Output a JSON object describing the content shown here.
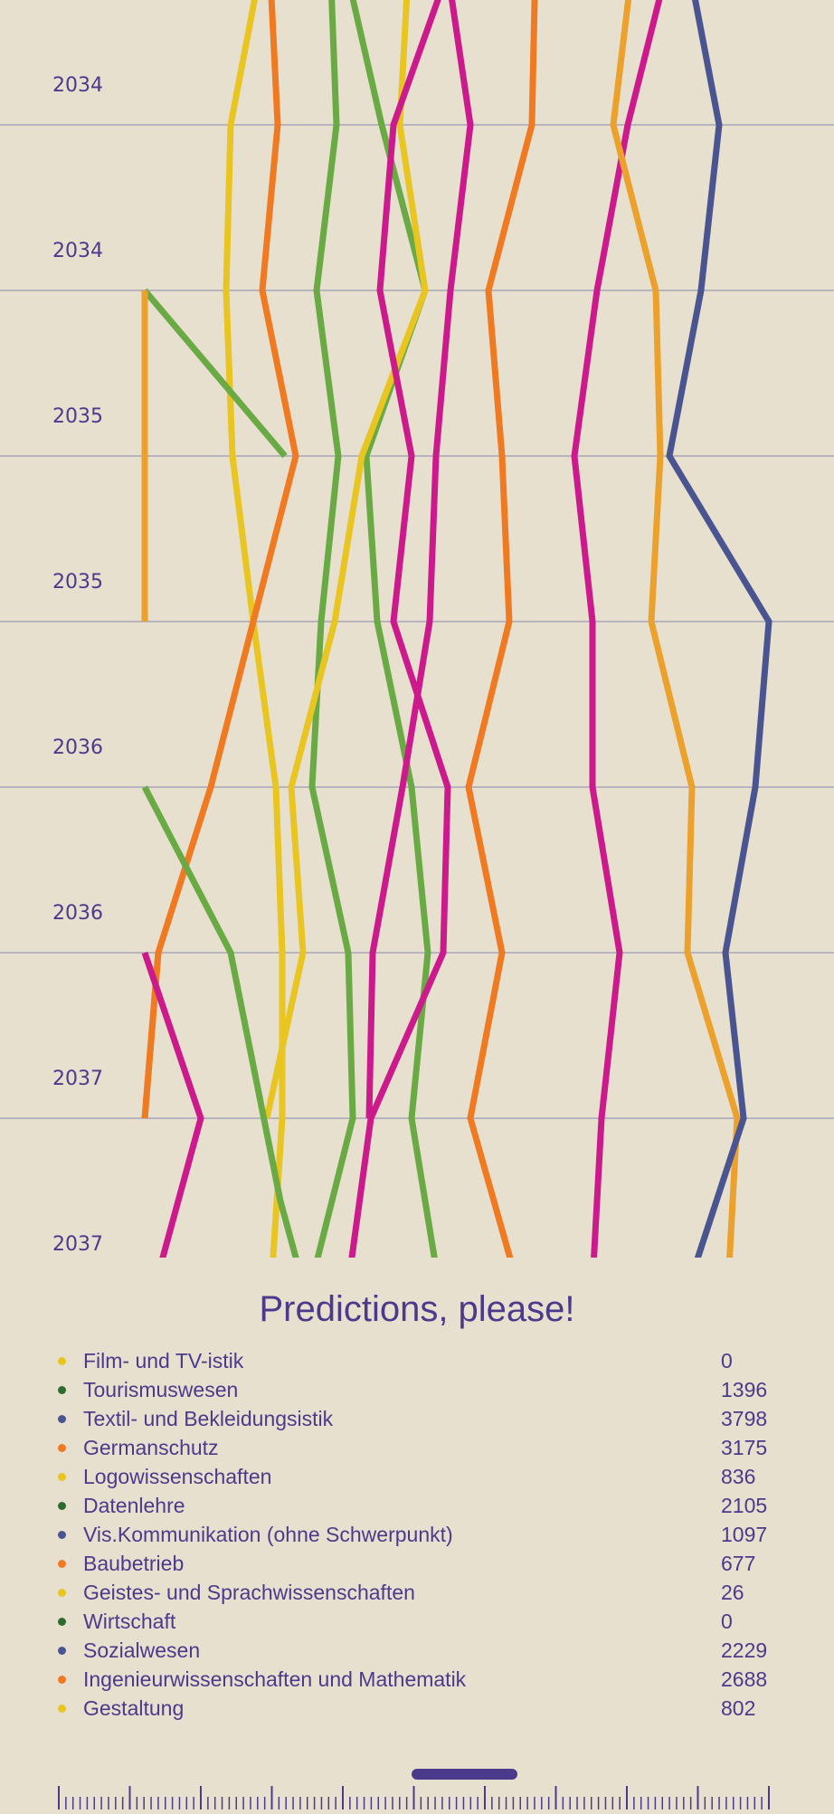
{
  "chart_data": {
    "type": "line",
    "orientation": "vertical-time-axis",
    "title": "Predictions, please!",
    "y_tick_labels": [
      "2034",
      "2034",
      "2035",
      "2035",
      "2036",
      "2036",
      "2037",
      "2037"
    ],
    "grid": true,
    "colors": {
      "yellow": "#e8c520",
      "orange": "#f07a22",
      "light_orange": "#eba12b",
      "green": "#6aaa45",
      "magenta": "#cc1a8c",
      "navy": "#4a5490",
      "dark_green": "#2e6b2e",
      "grid": "#b7b4bf",
      "text": "#4b3a8c",
      "background": "#e8e0cf"
    },
    "series": [
      {
        "color": "yellow",
        "values": [
          290,
          255,
          250,
          257,
          280,
          305,
          312,
          312,
          300
        ]
      },
      {
        "color": "orange",
        "values": [
          298,
          307,
          290,
          327,
          280,
          233,
          175,
          160
        ]
      },
      {
        "color": "green",
        "values": [
          365,
          372,
          350,
          374,
          355,
          345,
          385,
          390,
          344
        ]
      },
      {
        "color": "green",
        "values": [
          380,
          422,
          470,
          405,
          417,
          455,
          473,
          455,
          485
        ]
      },
      {
        "color": "yellow",
        "values": [
          452,
          442,
          470,
          400,
          370,
          322,
          335,
          295
        ]
      },
      {
        "color": "magenta",
        "values": [
          500,
          435,
          420,
          455,
          435,
          495,
          490,
          410,
          385
        ]
      },
      {
        "color": "magenta",
        "values": [
          493,
          520,
          498,
          482,
          475,
          445,
          412,
          408
        ]
      },
      {
        "color": "orange",
        "values": [
          592,
          588,
          540,
          555,
          563,
          518,
          555,
          520,
          572
        ]
      },
      {
        "color": "magenta",
        "values": [
          740,
          694,
          660,
          635,
          655,
          655,
          685,
          665,
          655
        ]
      },
      {
        "color": "light_orange",
        "values": [
          700,
          678,
          725,
          730,
          720,
          765,
          760,
          815,
          805
        ]
      },
      {
        "color": "navy",
        "values": [
          760,
          795,
          775,
          740,
          850,
          835,
          802,
          822,
          762
        ]
      },
      {
        "color": "green",
        "values": [
          160,
          315
        ]
      },
      {
        "color": "light_orange",
        "values": [
          160,
          160
        ]
      },
      {
        "color": "green",
        "values": [
          160,
          255,
          310,
          335
        ]
      },
      {
        "color": "orange",
        "values": [
          160,
          175
        ]
      },
      {
        "color": "magenta",
        "values": [
          160,
          222,
          172
        ]
      }
    ],
    "legend": [
      {
        "name": "Film- und TV-istik",
        "value": "0",
        "color": "yellow"
      },
      {
        "name": "Tourismuswesen",
        "value": "1396",
        "color": "dark_green"
      },
      {
        "name": "Textil- und Bekleidungsistik",
        "value": "3798",
        "color": "navy"
      },
      {
        "name": "Germanschutz",
        "value": "3175",
        "color": "orange"
      },
      {
        "name": "Logowissenschaften",
        "value": "836",
        "color": "yellow"
      },
      {
        "name": "Datenlehre",
        "value": "2105",
        "color": "dark_green"
      },
      {
        "name": "Vis.Kommunikation (ohne Schwerpunkt)",
        "value": "1097",
        "color": "navy"
      },
      {
        "name": "Baubetrieb",
        "value": "677",
        "color": "orange"
      },
      {
        "name": "Geistes- und Sprachwissenschaften",
        "value": "26",
        "color": "yellow"
      },
      {
        "name": "Wirtschaft",
        "value": "0",
        "color": "dark_green"
      },
      {
        "name": "Sozialwesen",
        "value": "2229",
        "color": "navy"
      },
      {
        "name": "Ingenieurwissenschaften und Mathematik",
        "value": "2688",
        "color": "orange"
      },
      {
        "name": "Gestaltung",
        "value": "802",
        "color": "yellow"
      }
    ]
  },
  "timeline": {
    "handle_position": 0.55
  }
}
